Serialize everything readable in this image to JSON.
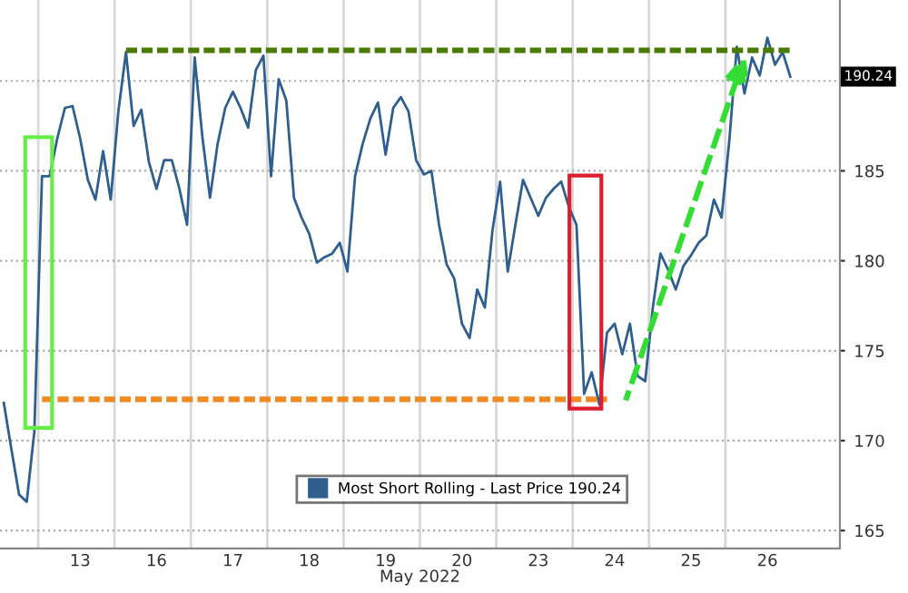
{
  "chart_data": {
    "type": "line",
    "xlabel": "May 2022",
    "categories": [
      null,
      null,
      null,
      null,
      null,
      null,
      null,
      null,
      null,
      null,
      "13",
      null,
      null,
      null,
      null,
      null,
      null,
      null,
      null,
      null,
      "16",
      null,
      null,
      null,
      null,
      null,
      null,
      null,
      null,
      null,
      "17",
      null,
      null,
      null,
      null,
      null,
      null,
      null,
      null,
      null,
      "18",
      null,
      null,
      null,
      null,
      null,
      null,
      null,
      null,
      null,
      "19",
      null,
      null,
      null,
      null,
      null,
      null,
      null,
      null,
      null,
      "20",
      null,
      null,
      null,
      null,
      null,
      null,
      null,
      null,
      null,
      "23",
      null,
      null,
      null,
      null,
      null,
      null,
      null,
      null,
      null,
      "24",
      null,
      null,
      null,
      null,
      null,
      null,
      null,
      null,
      null,
      "25",
      null,
      null,
      null,
      null,
      null,
      null,
      null,
      null,
      null,
      "26",
      null,
      null,
      null
    ],
    "ylim": [
      164,
      194.5
    ],
    "yticks": [
      165,
      170,
      175,
      180,
      185,
      {
        "value": 190,
        "label": null
      }
    ],
    "grid": true,
    "legend": "bottom",
    "line_style": "solid",
    "series": [
      {
        "name": "Most Short Rolling - Last Price 190.24",
        "color": "#2f5f8f",
        "values": [
          172.1,
          169.5,
          167.0,
          166.6,
          170.5,
          184.7,
          184.7,
          186.8,
          188.5,
          188.6,
          186.8,
          184.5,
          183.4,
          186.1,
          183.4,
          188.3,
          191.6,
          187.5,
          188.4,
          185.5,
          184.0,
          185.6,
          185.6,
          184.0,
          182.0,
          191.3,
          186.9,
          183.5,
          186.5,
          188.5,
          189.4,
          188.5,
          187.4,
          190.6,
          191.4,
          184.7,
          190.1,
          188.9,
          183.5,
          182.4,
          181.5,
          179.9,
          180.2,
          180.4,
          181.0,
          179.4,
          184.7,
          186.5,
          187.9,
          188.8,
          185.9,
          188.5,
          189.1,
          188.3,
          185.6,
          184.8,
          185.0,
          182.0,
          179.8,
          179.0,
          176.5,
          175.7,
          178.4,
          177.4,
          181.7,
          184.4,
          179.4,
          182.0,
          184.5,
          183.5,
          182.5,
          183.5,
          184.0,
          184.4,
          183.0,
          182.0,
          172.6,
          173.8,
          172.0,
          176.0,
          176.5,
          174.8,
          176.5,
          173.6,
          173.3,
          177.4,
          180.4,
          179.5,
          178.4,
          179.7,
          180.3,
          181.0,
          181.4,
          183.4,
          182.4,
          186.6,
          191.9,
          189.3,
          191.3,
          190.3,
          192.4,
          190.9,
          191.6,
          190.24
        ]
      },
      {
        "color": "#4a7a00",
        "line_style": "dashed",
        "values": [
          null,
          null,
          null,
          null,
          null,
          null,
          null,
          null,
          null,
          null,
          null,
          null,
          null,
          null,
          null,
          null,
          191.7,
          191.7,
          191.7,
          191.7,
          191.7,
          191.7,
          191.7,
          191.7,
          191.7,
          191.7,
          191.7,
          191.7,
          191.7,
          191.7,
          191.7,
          191.7,
          191.7,
          191.7,
          191.7,
          191.7,
          191.7,
          191.7,
          191.7,
          191.7,
          191.7,
          191.7,
          191.7,
          191.7,
          191.7,
          191.7,
          191.7,
          191.7,
          191.7,
          191.7,
          191.7,
          191.7,
          191.7,
          191.7,
          191.7,
          191.7,
          191.7,
          191.7,
          191.7,
          191.7,
          191.7,
          191.7,
          191.7,
          191.7,
          191.7,
          191.7,
          191.7,
          191.7,
          191.7,
          191.7,
          191.7,
          191.7,
          191.7,
          191.7,
          191.7,
          191.7,
          191.7,
          191.7,
          191.7,
          191.7,
          191.7,
          191.7,
          191.7,
          191.7,
          191.7,
          191.7,
          191.7,
          191.7,
          191.7,
          191.7,
          191.7,
          191.7,
          191.7,
          191.7,
          191.7,
          191.7,
          191.7,
          191.7,
          191.7,
          191.7,
          191.7,
          191.7,
          191.7,
          191.7
        ]
      },
      {
        "color": "#f08a24",
        "line_style": "dashed",
        "values": [
          null,
          null,
          null,
          null,
          null,
          172.3,
          172.3,
          172.3,
          172.3,
          172.3,
          172.3,
          172.3,
          172.3,
          172.3,
          172.3,
          172.3,
          172.3,
          172.3,
          172.3,
          172.3,
          172.3,
          172.3,
          172.3,
          172.3,
          172.3,
          172.3,
          172.3,
          172.3,
          172.3,
          172.3,
          172.3,
          172.3,
          172.3,
          172.3,
          172.3,
          172.3,
          172.3,
          172.3,
          172.3,
          172.3,
          172.3,
          172.3,
          172.3,
          172.3,
          172.3,
          172.3,
          172.3,
          172.3,
          172.3,
          172.3,
          172.3,
          172.3,
          172.3,
          172.3,
          172.3,
          172.3,
          172.3,
          172.3,
          172.3,
          172.3,
          172.3,
          172.3,
          172.3,
          172.3,
          172.3,
          172.3,
          172.3,
          172.3,
          172.3,
          172.3,
          172.3,
          172.3,
          172.3,
          172.3,
          172.3,
          172.3,
          172.3,
          172.3,
          172.3,
          172.3,
          null,
          null,
          null,
          null,
          null,
          null,
          null,
          null,
          null,
          null,
          null,
          null,
          null,
          null,
          null,
          null,
          null,
          null,
          null,
          null,
          null,
          null,
          null,
          null
        ]
      }
    ],
    "annotations": [
      "190.24"
    ]
  }
}
